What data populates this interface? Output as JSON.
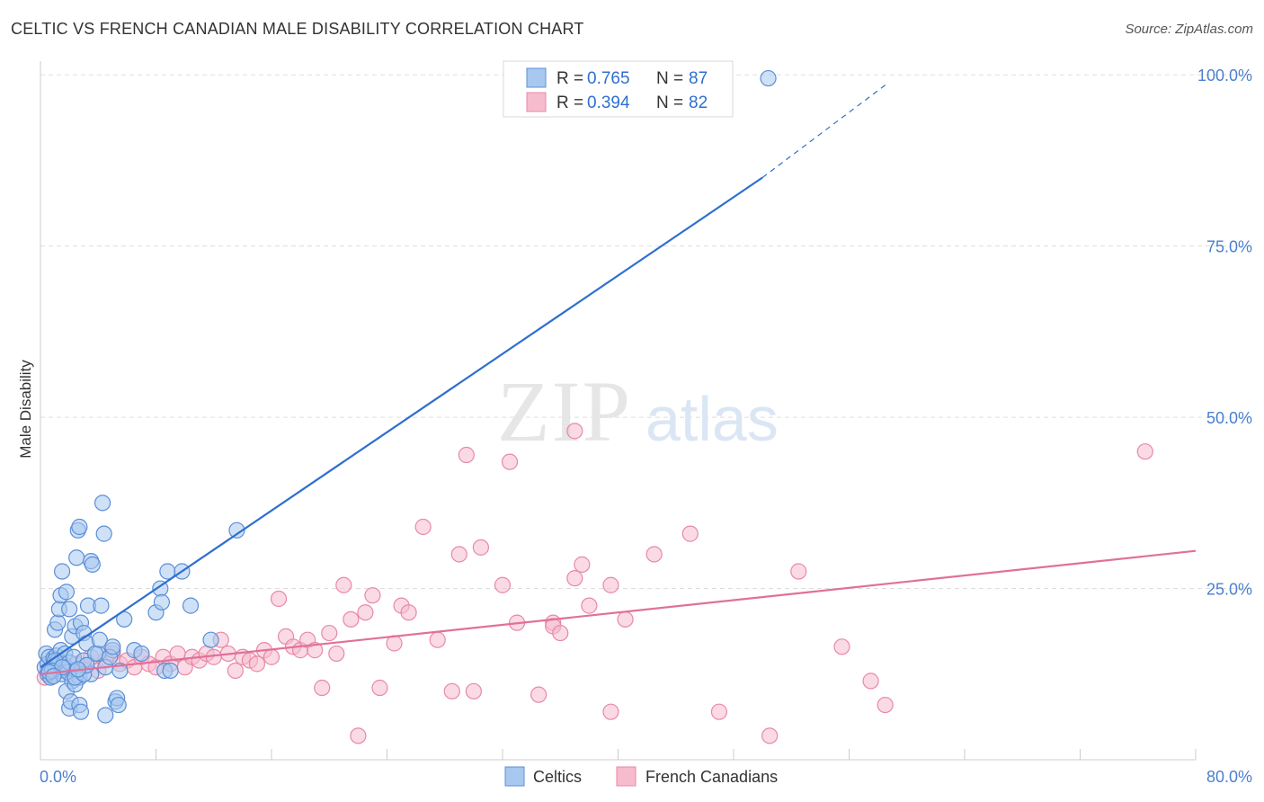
{
  "header": {
    "title": "CELTIC VS FRENCH CANADIAN MALE DISABILITY CORRELATION CHART",
    "source": "Source: ZipAtlas.com"
  },
  "watermark": {
    "zip": "ZIP",
    "atlas": "atlas"
  },
  "legend_top": [
    {
      "r_label": "R = ",
      "r_value": "0.765",
      "n_label": "N = ",
      "n_value": "87"
    },
    {
      "r_label": "R = ",
      "r_value": "0.394",
      "n_label": "N = ",
      "n_value": "82"
    }
  ],
  "legend_bottom": [
    "Celtics",
    "French Canadians"
  ],
  "colors": {
    "celtic_fill": "#a8c8f0",
    "celtic_stroke": "#5b8fd6",
    "celtic_line": "#2f6fcf",
    "french_fill": "#f6bccd",
    "french_stroke": "#e889a6",
    "french_line": "#e0709a",
    "axis_label": "#4a7fd1",
    "grid": "#dddddd"
  },
  "chart_data": {
    "type": "scatter",
    "title": "CELTIC VS FRENCH CANADIAN MALE DISABILITY CORRELATION CHART",
    "xlabel": "",
    "ylabel": "Male Disability",
    "xlim": [
      0,
      80
    ],
    "ylim": [
      0,
      102
    ],
    "x_tick_labels": [
      "0.0%",
      "80.0%"
    ],
    "y_ticks": [
      25,
      50,
      75,
      100
    ],
    "y_tick_labels": [
      "25.0%",
      "50.0%",
      "75.0%",
      "100.0%"
    ],
    "grid": true,
    "series": [
      {
        "name": "Celtics",
        "r": 0.765,
        "n": 87,
        "trend": {
          "x0": 0,
          "y0": 13.5,
          "x1": 50,
          "y1": 85.0,
          "dash_to_x": 58.5,
          "dash_to_y": 98.5
        },
        "points": [
          [
            0.3,
            13.5
          ],
          [
            0.4,
            15.5
          ],
          [
            0.5,
            12.5
          ],
          [
            0.5,
            14.0
          ],
          [
            0.6,
            15.0
          ],
          [
            0.7,
            12.0
          ],
          [
            0.8,
            13.2
          ],
          [
            0.9,
            14.8
          ],
          [
            1.0,
            13.8
          ],
          [
            1.1,
            15.2
          ],
          [
            1.2,
            14.5
          ],
          [
            1.3,
            13.0
          ],
          [
            1.4,
            16.0
          ],
          [
            1.5,
            12.5
          ],
          [
            1.6,
            14.0
          ],
          [
            1.7,
            15.5
          ],
          [
            1.8,
            13.5
          ],
          [
            1.9,
            12.8
          ],
          [
            2.0,
            14.2
          ],
          [
            2.2,
            11.5
          ],
          [
            2.3,
            15.0
          ],
          [
            2.5,
            13.0
          ],
          [
            2.7,
            12.0
          ],
          [
            3.0,
            14.5
          ],
          [
            3.5,
            12.5
          ],
          [
            4.0,
            15.5
          ],
          [
            4.5,
            13.5
          ],
          [
            5.0,
            16.0
          ],
          [
            1.0,
            19.0
          ],
          [
            1.2,
            20.0
          ],
          [
            1.3,
            22.0
          ],
          [
            1.4,
            24.0
          ],
          [
            1.5,
            27.5
          ],
          [
            1.8,
            24.5
          ],
          [
            2.0,
            22.0
          ],
          [
            2.2,
            18.0
          ],
          [
            2.4,
            19.5
          ],
          [
            2.5,
            29.5
          ],
          [
            2.6,
            33.5
          ],
          [
            2.7,
            34.0
          ],
          [
            2.8,
            20.0
          ],
          [
            3.0,
            18.5
          ],
          [
            3.2,
            17.0
          ],
          [
            3.3,
            22.5
          ],
          [
            3.5,
            29.0
          ],
          [
            3.6,
            28.5
          ],
          [
            3.8,
            15.5
          ],
          [
            4.1,
            17.5
          ],
          [
            4.2,
            22.5
          ],
          [
            4.3,
            37.5
          ],
          [
            4.4,
            33.0
          ],
          [
            4.8,
            15.0
          ],
          [
            5.0,
            16.5
          ],
          [
            5.2,
            8.5
          ],
          [
            5.3,
            9.0
          ],
          [
            5.4,
            8.0
          ],
          [
            5.5,
            13.0
          ],
          [
            5.8,
            20.5
          ],
          [
            6.5,
            16.0
          ],
          [
            7.0,
            15.5
          ],
          [
            8.0,
            21.5
          ],
          [
            8.3,
            25.0
          ],
          [
            8.4,
            23.0
          ],
          [
            8.6,
            13.0
          ],
          [
            8.8,
            27.5
          ],
          [
            9.0,
            13.0
          ],
          [
            9.8,
            27.5
          ],
          [
            10.4,
            22.5
          ],
          [
            11.8,
            17.5
          ],
          [
            13.6,
            33.5
          ],
          [
            1.8,
            10.0
          ],
          [
            2.0,
            7.5
          ],
          [
            2.1,
            8.5
          ],
          [
            2.4,
            11.0
          ],
          [
            2.7,
            8.0
          ],
          [
            2.8,
            7.0
          ],
          [
            4.5,
            6.5
          ],
          [
            2.4,
            12.0
          ],
          [
            3.0,
            12.5
          ],
          [
            1.0,
            14.5
          ],
          [
            0.8,
            13.0
          ],
          [
            1.5,
            13.5
          ],
          [
            0.6,
            12.8
          ],
          [
            0.9,
            12.2
          ],
          [
            3.2,
            13.8
          ],
          [
            2.6,
            13.2
          ],
          [
            50.4,
            99.5
          ]
        ]
      },
      {
        "name": "French Canadians",
        "r": 0.394,
        "n": 82,
        "trend": {
          "x0": 0,
          "y0": 12.5,
          "x1": 80,
          "y1": 30.5
        },
        "points": [
          [
            0.3,
            12.0
          ],
          [
            0.5,
            13.0
          ],
          [
            0.8,
            12.5
          ],
          [
            1.0,
            14.0
          ],
          [
            1.5,
            13.5
          ],
          [
            2.0,
            12.5
          ],
          [
            2.5,
            14.0
          ],
          [
            3.0,
            13.5
          ],
          [
            3.5,
            15.0
          ],
          [
            4.0,
            13.0
          ],
          [
            4.5,
            14.5
          ],
          [
            5.0,
            15.5
          ],
          [
            5.5,
            14.0
          ],
          [
            6.0,
            14.5
          ],
          [
            6.5,
            13.5
          ],
          [
            7.0,
            15.0
          ],
          [
            7.5,
            14.0
          ],
          [
            8.0,
            13.5
          ],
          [
            8.5,
            15.0
          ],
          [
            9.0,
            14.0
          ],
          [
            9.5,
            15.5
          ],
          [
            10.0,
            13.5
          ],
          [
            10.5,
            15.0
          ],
          [
            11.0,
            14.5
          ],
          [
            11.5,
            15.5
          ],
          [
            12.0,
            15.0
          ],
          [
            12.5,
            17.5
          ],
          [
            13.0,
            15.5
          ],
          [
            13.5,
            13.0
          ],
          [
            14.0,
            15.0
          ],
          [
            14.5,
            14.5
          ],
          [
            15.0,
            14.0
          ],
          [
            15.5,
            16.0
          ],
          [
            16.0,
            15.0
          ],
          [
            16.5,
            23.5
          ],
          [
            17.0,
            18.0
          ],
          [
            17.5,
            16.5
          ],
          [
            18.0,
            16.0
          ],
          [
            18.5,
            17.5
          ],
          [
            19.0,
            16.0
          ],
          [
            19.5,
            10.5
          ],
          [
            20.0,
            18.5
          ],
          [
            20.5,
            15.5
          ],
          [
            21.0,
            25.5
          ],
          [
            21.5,
            20.5
          ],
          [
            22.0,
            3.5
          ],
          [
            22.5,
            21.5
          ],
          [
            23.0,
            24.0
          ],
          [
            23.5,
            10.5
          ],
          [
            24.5,
            17.0
          ],
          [
            25.0,
            22.5
          ],
          [
            25.5,
            21.5
          ],
          [
            26.5,
            34.0
          ],
          [
            27.5,
            17.5
          ],
          [
            28.5,
            10.0
          ],
          [
            29.0,
            30.0
          ],
          [
            29.5,
            44.5
          ],
          [
            30.0,
            10.0
          ],
          [
            30.5,
            31.0
          ],
          [
            32.0,
            25.5
          ],
          [
            32.5,
            43.5
          ],
          [
            33.0,
            20.0
          ],
          [
            34.5,
            9.5
          ],
          [
            35.5,
            20.0
          ],
          [
            35.5,
            19.5
          ],
          [
            36.0,
            18.5
          ],
          [
            37.0,
            26.5
          ],
          [
            37.5,
            28.5
          ],
          [
            37.0,
            48.0
          ],
          [
            38.0,
            22.5
          ],
          [
            39.5,
            25.5
          ],
          [
            39.5,
            7.0
          ],
          [
            40.5,
            20.5
          ],
          [
            42.5,
            30.0
          ],
          [
            45.0,
            33.0
          ],
          [
            47.0,
            7.0
          ],
          [
            50.5,
            3.5
          ],
          [
            52.5,
            27.5
          ],
          [
            55.5,
            16.5
          ],
          [
            57.5,
            11.5
          ],
          [
            58.5,
            8.0
          ],
          [
            76.5,
            45.0
          ]
        ]
      }
    ]
  }
}
